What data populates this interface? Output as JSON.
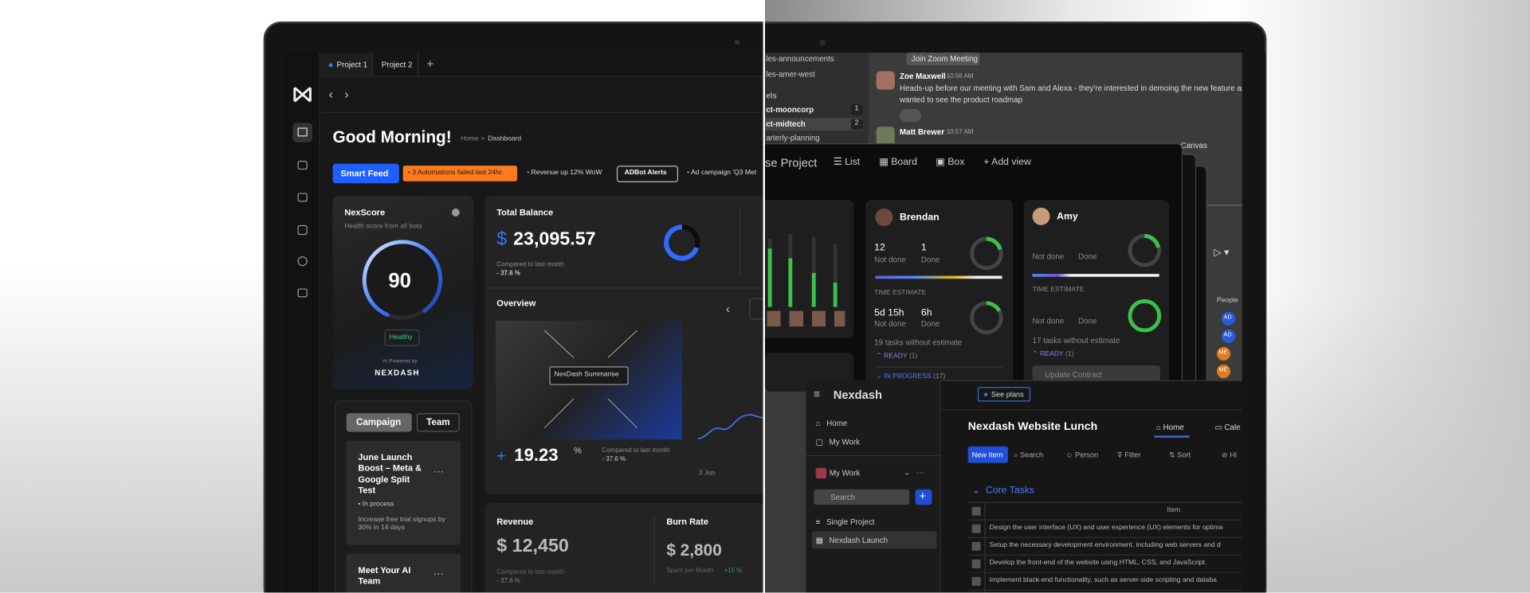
{
  "tabs": [
    "Project 1",
    "Project 2"
  ],
  "greeting": "Good Morning!",
  "breadcrumb": {
    "parent": "Home >",
    "current": "Dashboard"
  },
  "feed": [
    "Smart Feed",
    "3 Automations failed last 24hr.",
    "Revenue up 12% WoW",
    "ADBot Alerts",
    "Ad campaign 'Q3 Met"
  ],
  "nexscore": {
    "title": "NexScore",
    "subtitle": "Health score from all bots",
    "score": "90",
    "status": "Healthy",
    "powered": "AI Powered by",
    "brand": "NEXDASH"
  },
  "balance": {
    "title": "Total Balance",
    "currency": "$",
    "amount": "23,095.57",
    "compare": "Compared to last month",
    "change": "- 37.6 %"
  },
  "overview": {
    "title": "Overview",
    "button": "NexDash Summarise",
    "sign": "+",
    "value": "19.23",
    "unit": "%",
    "compare": "Compared to last month",
    "change": "- 37.6 %",
    "date": "3 Jun"
  },
  "campaign": {
    "tabs": [
      "Campaign",
      "Team"
    ],
    "card_title": "June Launch Boost – Meta & Google Split Test",
    "status": "• In process",
    "goal": "Increase free trial signups by 30% in 14 days",
    "next": "Meet Your AI Team"
  },
  "revenue": {
    "title": "Revenue",
    "amount": "$ 12,450",
    "compare": "Compared to last month",
    "change": "- 37.6 %"
  },
  "burn": {
    "title": "Burn Rate",
    "amount": "$ 2,800",
    "note": "Spent per Month",
    "change": "+15 %"
  },
  "chat": {
    "channels": [
      "les-announcements",
      "les-amer-west",
      "els",
      "ct-mooncorp",
      "ct-midtech",
      "arterly-planning"
    ],
    "badges": [
      "1",
      "2"
    ],
    "zoom": "Join Zoom Meeting",
    "messages": [
      {
        "author": "Zoe Maxwell",
        "time": "10:56 AM",
        "lines": [
          "Heads-up before our meeting with Sam and Alexa - they're interested in demoing the new feature and a",
          "wanted to see the product roadmap"
        ]
      },
      {
        "author": "Matt Brewer",
        "time": "10:57 AM"
      }
    ],
    "canvas": "Canvas"
  },
  "project": {
    "title": "se Project",
    "views": [
      "List",
      "Board",
      "Box",
      "Add view"
    ],
    "brendan": {
      "name": "Brendan",
      "not_done": "12",
      "not_done_label": "Not done",
      "done": "1",
      "done_label": "Done",
      "estimate": "TIME ESTIMATE",
      "est_not_done": "5d 15h",
      "est_done": "6h",
      "without": "19 tasks without estimate",
      "ready": "READY",
      "ready_count": "(1)",
      "progress": "IN PROGRESS",
      "progress_count": "(17)"
    },
    "amy": {
      "name": "Amy",
      "not_done_label": "Not done",
      "done_label": "Done",
      "estimate": "TIME ESTIMATE",
      "without": "17 tasks without estimate",
      "ready": "READY",
      "ready_count": "(1)",
      "task": "Update Contract"
    },
    "people": {
      "header": "People",
      "avatars": [
        "AD",
        "AD",
        "ME",
        "ME"
      ]
    }
  },
  "nexdash": {
    "brand": "Nexdash",
    "plans": "See plans",
    "nav": [
      "Home",
      "My Work"
    ],
    "workspace": "My Work",
    "search": "Search",
    "projects": [
      "Single Project",
      "Nexdash Launch"
    ],
    "page_title": "Nexdash Website Lunch",
    "page_tabs": [
      "Home",
      "Cale"
    ],
    "toolbar": [
      "New Item",
      "Search",
      "Person",
      "Filter",
      "Sort",
      "Hi"
    ],
    "group": "Core Tasks",
    "column": "Item",
    "rows": [
      "Design the user interface (UX) and user experience (UX) elements for optima",
      "Setup the necessary development environment, including web servers and d",
      "Develop the front-end of the website using HTML, CSS, and JavaScript.",
      "Implement black-end functionality, such as server-side scripting and databa"
    ]
  }
}
